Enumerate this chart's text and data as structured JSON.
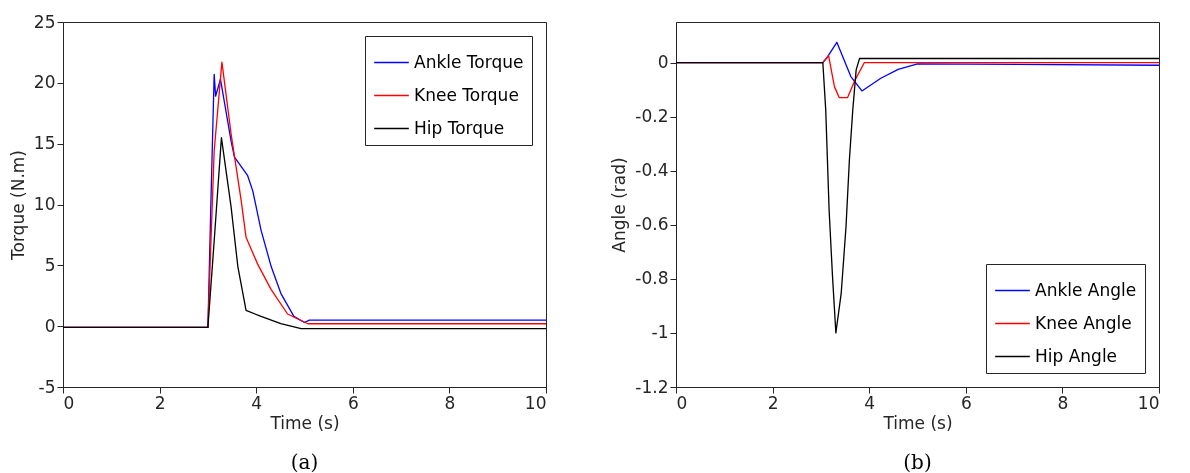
{
  "chart_data": [
    {
      "type": "line",
      "xlabel": "Time (s)",
      "ylabel": "Torque (N.m)",
      "annotations": [
        "(a)"
      ],
      "xlim": [
        0,
        10
      ],
      "ylim": [
        -5,
        25
      ],
      "xticks": [
        0,
        2,
        4,
        6,
        8,
        10
      ],
      "yticks": [
        -5,
        0,
        5,
        10,
        15,
        20,
        25
      ],
      "grid": false,
      "legend": "top right",
      "marker": "none",
      "line_style": "solid",
      "series": [
        {
          "name": "Ankle Torque",
          "color": "#0000ff",
          "x": [
            0,
            3.0,
            3.06,
            3.13,
            3.16,
            3.26,
            3.48,
            3.55,
            3.82,
            3.93,
            4.1,
            4.31,
            4.51,
            4.78,
            5.0,
            5.1,
            10
          ],
          "values": [
            -0.1,
            -0.1,
            9.8,
            20.7,
            18.9,
            20.3,
            15.2,
            13.9,
            12.4,
            11.1,
            7.9,
            4.9,
            2.7,
            0.8,
            0.3,
            0.5,
            0.5
          ]
        },
        {
          "name": "Knee Torque",
          "color": "#ff0000",
          "x": [
            0,
            3.0,
            3.13,
            3.29,
            3.48,
            3.69,
            3.79,
            4.03,
            4.31,
            4.65,
            5.07,
            10
          ],
          "values": [
            -0.1,
            -0.1,
            14.4,
            21.7,
            15.8,
            10.3,
            7.3,
            5.1,
            3.0,
            1.0,
            0.2,
            0.2
          ]
        },
        {
          "name": "Hip Torque",
          "color": "#000000",
          "x": [
            0,
            3.0,
            3.13,
            3.28,
            3.48,
            3.62,
            3.79,
            4.1,
            4.51,
            4.93,
            10
          ],
          "values": [
            -0.1,
            -0.1,
            7.0,
            15.5,
            9.8,
            4.9,
            1.3,
            0.8,
            0.2,
            -0.2,
            -0.2
          ]
        }
      ]
    },
    {
      "type": "line",
      "xlabel": "Time (s)",
      "ylabel": "Angle (rad)",
      "annotations": [
        "(b)"
      ],
      "xlim": [
        0,
        10
      ],
      "ylim": [
        -1.2,
        0.15
      ],
      "xticks": [
        0,
        2,
        4,
        6,
        8,
        10
      ],
      "yticks": [
        -1.2,
        -1,
        -0.8,
        -0.6,
        -0.4,
        -0.2,
        0
      ],
      "grid": false,
      "legend": "bottom right",
      "marker": "none",
      "line_style": "solid",
      "series": [
        {
          "name": "Ankle Angle",
          "color": "#0000ff",
          "x": [
            0,
            3.04,
            3.14,
            3.33,
            3.62,
            3.85,
            4.24,
            4.6,
            5.0,
            10
          ],
          "values": [
            0,
            0,
            0.022,
            0.075,
            -0.052,
            -0.105,
            -0.058,
            -0.025,
            -0.005,
            -0.01
          ]
        },
        {
          "name": "Knee Angle",
          "color": "#ff0000",
          "x": [
            0,
            3.04,
            3.16,
            3.28,
            3.38,
            3.55,
            3.71,
            3.9,
            10
          ],
          "values": [
            0,
            0,
            0.025,
            -0.089,
            -0.13,
            -0.13,
            -0.064,
            0,
            0
          ]
        },
        {
          "name": "Hip Angle",
          "color": "#000000",
          "x": [
            0,
            3.04,
            3.1,
            3.17,
            3.24,
            3.31,
            3.42,
            3.52,
            3.59,
            3.66,
            3.73,
            3.8,
            10
          ],
          "values": [
            0,
            0,
            -0.175,
            -0.545,
            -0.79,
            -1.0,
            -0.854,
            -0.607,
            -0.36,
            -0.175,
            -0.027,
            0.015,
            0.015
          ]
        }
      ]
    }
  ]
}
